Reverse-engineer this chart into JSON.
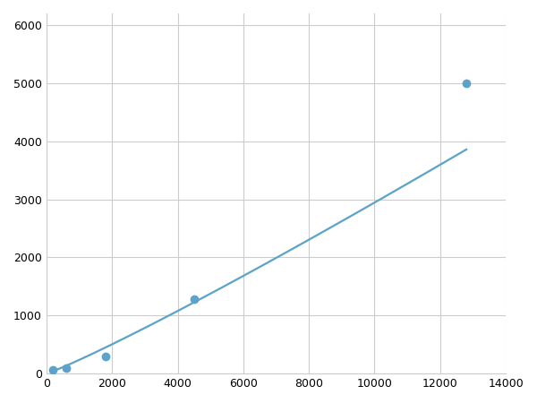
{
  "x_points": [
    200,
    600,
    1800,
    4500,
    12800
  ],
  "y_points": [
    60,
    100,
    300,
    1280,
    5000
  ],
  "line_color": "#5BA3C9",
  "marker_color": "#5BA3C9",
  "marker_facecolor": "#ffffff",
  "marker_size": 6,
  "line_width": 1.6,
  "xlim": [
    0,
    14000
  ],
  "ylim": [
    0,
    6200
  ],
  "xticks": [
    0,
    2000,
    4000,
    6000,
    8000,
    10000,
    12000,
    14000
  ],
  "yticks": [
    0,
    1000,
    2000,
    3000,
    4000,
    5000,
    6000
  ],
  "grid_color": "#cccccc",
  "grid_linestyle": "-",
  "grid_linewidth": 0.8,
  "background_color": "#ffffff",
  "fig_width": 6.0,
  "fig_height": 4.5,
  "dpi": 100
}
